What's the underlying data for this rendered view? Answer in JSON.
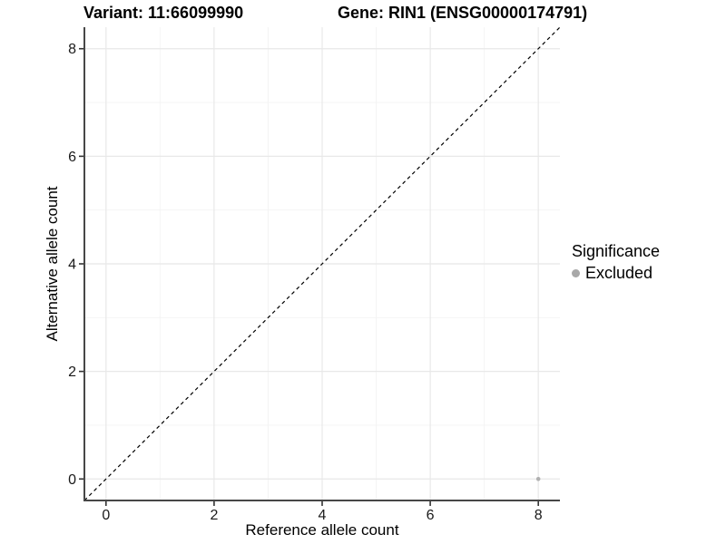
{
  "titles": {
    "variant": "Variant: 11:66099990",
    "gene": "Gene: RIN1 (ENSG00000174791)"
  },
  "chart_data": {
    "type": "scatter",
    "xlabel": "Reference allele count",
    "ylabel": "Alternative allele count",
    "xlim": [
      -0.4,
      8.4
    ],
    "ylim": [
      -0.4,
      8.4
    ],
    "x_ticks": [
      0,
      2,
      4,
      6,
      8
    ],
    "y_ticks": [
      0,
      2,
      4,
      6,
      8
    ],
    "x_minor_ticks": [
      1,
      3,
      5,
      7
    ],
    "y_minor_ticks": [
      1,
      3,
      5,
      7
    ],
    "grid": "major-and-minor",
    "reference_line": {
      "style": "dashed",
      "slope": 1,
      "intercept": 0,
      "from": [
        -0.4,
        -0.4
      ],
      "to": [
        8.4,
        8.4
      ],
      "color": "#000000"
    },
    "series": [
      {
        "name": "Excluded",
        "color": "#b0b0b0",
        "points": [
          {
            "x": 8,
            "y": 0
          }
        ]
      }
    ],
    "legend": {
      "title": "Significance",
      "position": "right",
      "entries": [
        {
          "label": "Excluded",
          "color": "#a8a8a8"
        }
      ]
    },
    "style": {
      "grid_major": "#e8e8e8",
      "grid_minor": "#f4f4f4",
      "axis_line": "#474747",
      "tick_color": "#333333",
      "tick_label_color": "#1a1a1a",
      "tick_label_size": 16
    }
  }
}
